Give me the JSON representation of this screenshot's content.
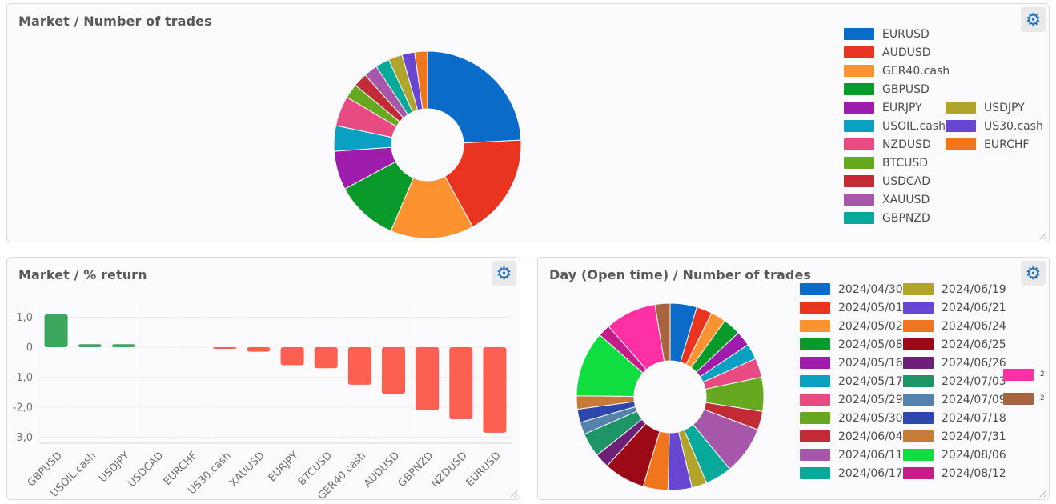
{
  "icons": {
    "gear": "⚙"
  },
  "colors": {
    "panel_background": "#fbfbfd",
    "panel_border": "#d9d9de",
    "title_text": "#595959",
    "legend_text": "#4c4c4c",
    "axis_text": "#757575",
    "gear_icon": "#1d6fc0",
    "gear_button_background": "#e9e9e9"
  },
  "chart_data": [
    {
      "type": "pie",
      "subtype": "donut",
      "title": "Market / Number of trades",
      "legend_position": "right",
      "slices": [
        {
          "label": "EURUSD",
          "value": 24.2,
          "color": "#0a6bc8"
        },
        {
          "label": "AUDUSD",
          "value": 17.8,
          "color": "#e9341f"
        },
        {
          "label": "GER40.cash",
          "value": 14.4,
          "color": "#fd9330"
        },
        {
          "label": "GBPUSD",
          "value": 10.8,
          "color": "#0a9a2a"
        },
        {
          "label": "EURJPY",
          "value": 6.7,
          "color": "#9e1dab"
        },
        {
          "label": "USOIL.cash",
          "value": 4.4,
          "color": "#09a0c2"
        },
        {
          "label": "NZDUSD",
          "value": 5.2,
          "color": "#ea4a82"
        },
        {
          "label": "BTCUSD",
          "value": 2.5,
          "color": "#66a81f"
        },
        {
          "label": "USDCAD",
          "value": 2.4,
          "color": "#c32b36"
        },
        {
          "label": "XAUUSD",
          "value": 2.4,
          "color": "#a757a9"
        },
        {
          "label": "GBPNZD",
          "value": 2.4,
          "color": "#08a89b"
        },
        {
          "label": "USDJPY",
          "value": 2.4,
          "color": "#b1a42b"
        },
        {
          "label": "US30.cash",
          "value": 2.2,
          "color": "#6747d2"
        },
        {
          "label": "EURCHF",
          "value": 2.2,
          "color": "#f0751c"
        }
      ],
      "legend_columns": [
        [
          0,
          1,
          2,
          3,
          4,
          5,
          6,
          7,
          8,
          9,
          10
        ],
        [
          11,
          12,
          13
        ]
      ]
    },
    {
      "type": "bar",
      "title": "Market / % return",
      "categories": [
        "GBPUSD",
        "USOIL.cash",
        "USDJPY",
        "USDCAD",
        "EURCHF",
        "US30.cash",
        "XAUUSD",
        "EURJPY",
        "BTCUSD",
        "GER40.cash",
        "AUDUSD",
        "GBPNZD",
        "NZDUSD",
        "EURUSD"
      ],
      "values": [
        1.1,
        0.1,
        0.1,
        0,
        0,
        -0.05,
        -0.15,
        -0.6,
        -0.7,
        -1.25,
        -1.55,
        -2.1,
        -2.4,
        -2.85
      ],
      "positive_color": "#3aa85c",
      "negative_color": "#fa5f50",
      "ylim": [
        -3.2,
        1.55
      ],
      "grid": true,
      "yticks": [
        {
          "v": 1,
          "label": "1,0"
        },
        {
          "v": 0,
          "label": "0"
        },
        {
          "v": -1,
          "label": "-1,0"
        },
        {
          "v": -2,
          "label": "-2,0"
        },
        {
          "v": -3,
          "label": "-3,0"
        }
      ]
    },
    {
      "type": "pie",
      "subtype": "donut",
      "title": "Day (Open time) / Number of trades",
      "legend_position": "right",
      "slices": [
        {
          "label": "2024/04/30",
          "value": 4.6,
          "color": "#0a6bc8"
        },
        {
          "label": "2024/05/01",
          "value": 2.7,
          "color": "#e9341f"
        },
        {
          "label": "2024/05/02",
          "value": 2.6,
          "color": "#fd9330"
        },
        {
          "label": "2024/05/08",
          "value": 3.1,
          "color": "#0a9a2a"
        },
        {
          "label": "2024/05/16",
          "value": 2.6,
          "color": "#9e1dab"
        },
        {
          "label": "2024/05/17",
          "value": 2.7,
          "color": "#09a0c2"
        },
        {
          "label": "2024/05/29",
          "value": 3.3,
          "color": "#ea4a82"
        },
        {
          "label": "2024/05/30",
          "value": 5.9,
          "color": "#66a81f"
        },
        {
          "label": "2024/06/04",
          "value": 3.2,
          "color": "#c32b36"
        },
        {
          "label": "2024/06/11",
          "value": 8.3,
          "color": "#a757a9"
        },
        {
          "label": "2024/06/17",
          "value": 4.6,
          "color": "#08a89b"
        },
        {
          "label": "2024/06/19",
          "value": 2.6,
          "color": "#b1a42b"
        },
        {
          "label": "2024/06/21",
          "value": 4.1,
          "color": "#6747d2"
        },
        {
          "label": "2024/06/24",
          "value": 4.3,
          "color": "#f0751c"
        },
        {
          "label": "2024/06/25",
          "value": 7.1,
          "color": "#9c0a18"
        },
        {
          "label": "2024/06/26",
          "value": 2.5,
          "color": "#6d2077"
        },
        {
          "label": "2024/07/03",
          "value": 4.2,
          "color": "#1e9566"
        },
        {
          "label": "2024/07/09",
          "value": 2.1,
          "color": "#5581ad"
        },
        {
          "label": "2024/07/18",
          "value": 2.3,
          "color": "#2d47ad"
        },
        {
          "label": "2024/07/31",
          "value": 2.3,
          "color": "#c57a35"
        },
        {
          "label": "2024/08/06",
          "value": 11.3,
          "color": "#10dd40"
        },
        {
          "label": "2024/08/12",
          "value": 2.1,
          "color": "#c41d8a"
        },
        {
          "label": "2",
          "clipped": true,
          "value": 8.8,
          "color": "#ff2fa4"
        },
        {
          "label": "2",
          "clipped": true,
          "value": 2.6,
          "color": "#a8643e"
        }
      ],
      "legend_columns": [
        [
          0,
          1,
          2,
          3,
          4,
          5,
          6,
          7,
          8,
          9,
          10
        ],
        [
          11,
          12,
          13,
          14,
          15,
          16,
          17,
          18,
          19,
          20,
          21
        ],
        [
          22,
          23
        ]
      ]
    }
  ]
}
